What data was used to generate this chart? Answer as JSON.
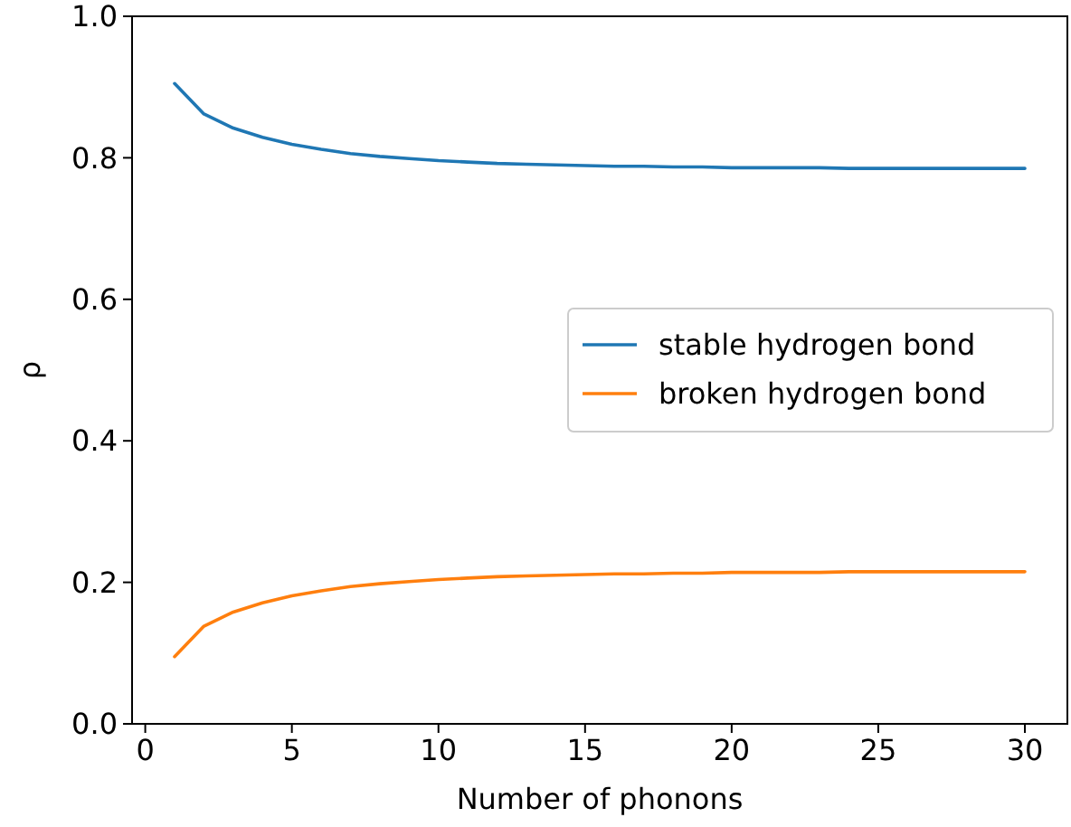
{
  "chart_data": {
    "type": "line",
    "xlabel": "Number of phonons",
    "ylabel": "ρ",
    "x": [
      1,
      2,
      3,
      4,
      5,
      6,
      7,
      8,
      9,
      10,
      11,
      12,
      13,
      14,
      15,
      16,
      17,
      18,
      19,
      20,
      21,
      22,
      23,
      24,
      25,
      26,
      27,
      28,
      29,
      30
    ],
    "series": [
      {
        "name": "stable hydrogen bond",
        "color": "#1f77b4",
        "values": [
          0.905,
          0.862,
          0.842,
          0.829,
          0.819,
          0.812,
          0.806,
          0.802,
          0.799,
          0.796,
          0.794,
          0.792,
          0.791,
          0.79,
          0.789,
          0.788,
          0.788,
          0.787,
          0.787,
          0.786,
          0.786,
          0.786,
          0.786,
          0.785,
          0.785,
          0.785,
          0.785,
          0.785,
          0.785,
          0.785
        ]
      },
      {
        "name": "broken hydrogen bond",
        "color": "#ff7f0e",
        "values": [
          0.095,
          0.138,
          0.158,
          0.171,
          0.181,
          0.188,
          0.194,
          0.198,
          0.201,
          0.204,
          0.206,
          0.208,
          0.209,
          0.21,
          0.211,
          0.212,
          0.212,
          0.213,
          0.213,
          0.214,
          0.214,
          0.214,
          0.214,
          0.215,
          0.215,
          0.215,
          0.215,
          0.215,
          0.215,
          0.215
        ]
      }
    ],
    "xlim": [
      -0.45,
      31.45
    ],
    "xticks": [
      0,
      5,
      10,
      15,
      20,
      25,
      30
    ],
    "ylim": [
      0,
      1
    ],
    "yticks": [
      {
        "value": 0,
        "label": "0.0"
      },
      {
        "value": 0.2,
        "label": "0.2"
      },
      {
        "value": 0.4,
        "label": "0.4"
      },
      {
        "value": 0.6,
        "label": "0.6"
      },
      {
        "value": 0.8,
        "label": "0.8"
      },
      {
        "value": 1,
        "label": "1.0"
      }
    ],
    "legend": "right",
    "grid": false,
    "marker": "none",
    "line_style": "solid"
  }
}
